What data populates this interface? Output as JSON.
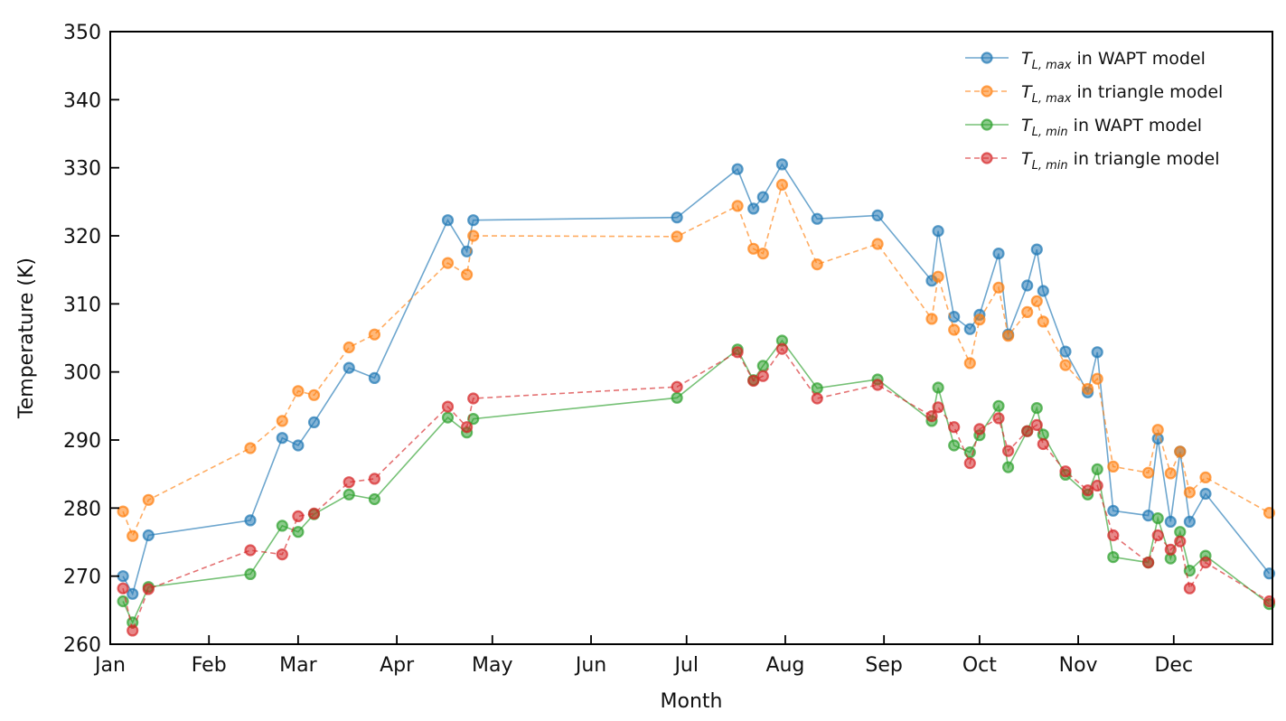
{
  "chart_data": {
    "type": "line",
    "title": "",
    "xlabel": "Month",
    "ylabel": "Temperature (K)",
    "xlim": [
      0,
      365
    ],
    "ylim": [
      260,
      350
    ],
    "x_ticks": [
      {
        "label": "Jan",
        "value": 0
      },
      {
        "label": "Feb",
        "value": 31
      },
      {
        "label": "Mar",
        "value": 59
      },
      {
        "label": "Apr",
        "value": 90
      },
      {
        "label": "May",
        "value": 120
      },
      {
        "label": "Jun",
        "value": 151
      },
      {
        "label": "Jul",
        "value": 181
      },
      {
        "label": "Aug",
        "value": 212
      },
      {
        "label": "Sep",
        "value": 243
      },
      {
        "label": "Oct",
        "value": 273
      },
      {
        "label": "Nov",
        "value": 304
      },
      {
        "label": "Dec",
        "value": 334
      }
    ],
    "y_ticks": [
      260,
      270,
      280,
      290,
      300,
      310,
      320,
      330,
      340,
      350
    ],
    "legend_position": "top-right",
    "series": [
      {
        "name": "T_{L,max} in WAPT model",
        "legend_sym": "T",
        "legend_sub": "L, max",
        "legend_rest": " in WAPT model",
        "color": "#1f77b4",
        "dashed": false,
        "x": [
          4,
          7,
          12,
          44,
          54,
          59,
          64,
          75,
          83,
          106,
          112,
          114,
          178,
          197,
          202,
          205,
          211,
          222,
          241,
          258,
          260,
          265,
          270,
          273,
          279,
          282,
          288,
          291,
          293,
          300,
          307,
          310,
          315,
          326,
          329,
          333,
          336,
          339,
          344,
          364
        ],
        "y": [
          270,
          267.4,
          276,
          278.2,
          290.3,
          289.2,
          292.6,
          300.6,
          299.1,
          322.3,
          317.7,
          322.3,
          322.7,
          329.8,
          324,
          325.7,
          330.5,
          322.5,
          323,
          313.4,
          320.7,
          308.1,
          306.3,
          308.4,
          317.4,
          305.5,
          312.7,
          318,
          311.9,
          303,
          297,
          302.9,
          279.6,
          278.9,
          290.2,
          278,
          288.3,
          278,
          282.1,
          270.4
        ]
      },
      {
        "name": "T_{L,max} in triangle model",
        "legend_sym": "T",
        "legend_sub": "L, max",
        "legend_rest": " in triangle model",
        "color": "#ff7f0e",
        "dashed": true,
        "x": [
          4,
          7,
          12,
          44,
          54,
          59,
          64,
          75,
          83,
          106,
          112,
          114,
          178,
          197,
          202,
          205,
          211,
          222,
          241,
          258,
          260,
          265,
          270,
          273,
          279,
          282,
          288,
          291,
          293,
          300,
          307,
          310,
          315,
          326,
          329,
          333,
          336,
          339,
          344,
          364
        ],
        "y": [
          279.5,
          275.9,
          281.2,
          288.8,
          292.8,
          297.2,
          296.6,
          303.6,
          305.5,
          316,
          314.3,
          320,
          319.9,
          324.4,
          318.1,
          317.4,
          327.5,
          315.8,
          318.8,
          307.8,
          314,
          306.2,
          301.3,
          307.7,
          312.4,
          305.3,
          308.8,
          310.4,
          307.4,
          301,
          297.5,
          299,
          286.1,
          285.2,
          291.5,
          285.1,
          288.3,
          282.3,
          284.5,
          279.3
        ]
      },
      {
        "name": "T_{L,min} in WAPT model",
        "legend_sym": "T",
        "legend_sub": "L, min",
        "legend_rest": " in WAPT model",
        "color": "#2ca02c",
        "dashed": false,
        "x": [
          4,
          7,
          12,
          44,
          54,
          59,
          64,
          75,
          83,
          106,
          112,
          114,
          178,
          197,
          202,
          205,
          211,
          222,
          241,
          258,
          260,
          265,
          270,
          273,
          279,
          282,
          288,
          291,
          293,
          300,
          307,
          310,
          315,
          326,
          329,
          333,
          336,
          339,
          344,
          364
        ],
        "y": [
          266.3,
          263.2,
          268.4,
          270.3,
          277.4,
          276.5,
          279.1,
          282,
          281.3,
          293.3,
          291.1,
          293.1,
          296.2,
          303.3,
          298.8,
          300.9,
          304.6,
          297.6,
          298.9,
          292.8,
          297.7,
          289.2,
          288.2,
          290.7,
          295,
          286,
          291.3,
          294.7,
          290.8,
          284.9,
          282,
          285.7,
          272.8,
          272,
          278.5,
          272.6,
          276.5,
          270.8,
          273,
          265.9
        ]
      },
      {
        "name": "T_{L,min} in triangle model",
        "legend_sym": "T",
        "legend_sub": "L, min",
        "legend_rest": " in triangle model",
        "color": "#d62728",
        "dashed": true,
        "x": [
          4,
          7,
          12,
          44,
          54,
          59,
          64,
          75,
          83,
          106,
          112,
          114,
          178,
          197,
          202,
          205,
          211,
          222,
          241,
          258,
          260,
          265,
          270,
          273,
          279,
          282,
          288,
          291,
          293,
          300,
          307,
          310,
          315,
          326,
          329,
          333,
          336,
          339,
          344,
          364
        ],
        "y": [
          268.2,
          262,
          268.1,
          273.8,
          273.2,
          278.8,
          279.2,
          283.8,
          284.3,
          294.9,
          291.9,
          296.1,
          297.8,
          302.9,
          298.7,
          299.4,
          303.4,
          296.1,
          298.1,
          293.5,
          294.8,
          291.9,
          286.6,
          291.6,
          293.2,
          288.4,
          291.3,
          292.2,
          289.4,
          285.4,
          282.6,
          283.3,
          276,
          272,
          276,
          273.9,
          275.1,
          268.2,
          272,
          266.3
        ]
      }
    ]
  }
}
